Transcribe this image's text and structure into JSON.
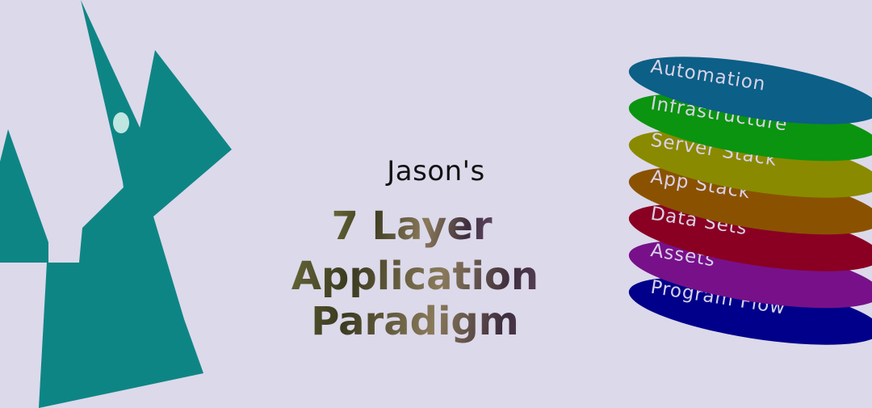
{
  "heading": {
    "subtitle": "Jason's",
    "line1": "7 Layer",
    "line2": "Application Paradigm"
  },
  "layers": [
    {
      "label": "Automation",
      "color": "#0c5f86"
    },
    {
      "label": "Infrastructure",
      "color": "#0b9410"
    },
    {
      "label": "Server Stack",
      "color": "#8a8a00"
    },
    {
      "label": "App Stack",
      "color": "#8a5200"
    },
    {
      "label": "Data Sets",
      "color": "#8a0022"
    },
    {
      "label": "Assets",
      "color": "#78108a"
    },
    {
      "label": "Program Flow",
      "color": "#00008a"
    }
  ],
  "logo": {
    "color": "#0e8585",
    "eye_color": "#bfe6e0"
  }
}
